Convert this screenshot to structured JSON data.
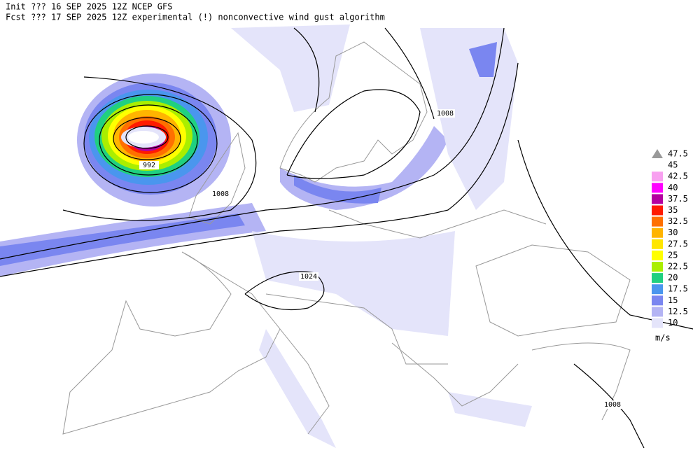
{
  "header": {
    "line1": "Init  ??? 16 SEP 2025 12Z  NCEP GFS",
    "line2": "Fcst ??? 17 SEP 2025 12Z  experimental (!) nonconvective wind gust algorithm"
  },
  "isobar_labels": [
    "992",
    "1008",
    "1008",
    "1024",
    "1008"
  ],
  "legend": {
    "unit": "m/s",
    "items": [
      {
        "label": "47.5",
        "color": "#999999"
      },
      {
        "label": "45"
      },
      {
        "label": "42.5",
        "color": "#f8a0f0"
      },
      {
        "label": "40",
        "color": "#ff00ff"
      },
      {
        "label": "37.5",
        "color": "#b400a0"
      },
      {
        "label": "35",
        "color": "#ff1a00"
      },
      {
        "label": "32.5",
        "color": "#ff7000"
      },
      {
        "label": "30",
        "color": "#ffb400"
      },
      {
        "label": "27.5",
        "color": "#ffe600"
      },
      {
        "label": "25",
        "color": "#ffff00"
      },
      {
        "label": "22.5",
        "color": "#aaee00"
      },
      {
        "label": "20",
        "color": "#20d080"
      },
      {
        "label": "17.5",
        "color": "#4a96ee"
      },
      {
        "label": "15",
        "color": "#7a86f0"
      },
      {
        "label": "12.5",
        "color": "#b4b4f4"
      },
      {
        "label": "10",
        "color": "#e4e4fa"
      }
    ]
  }
}
